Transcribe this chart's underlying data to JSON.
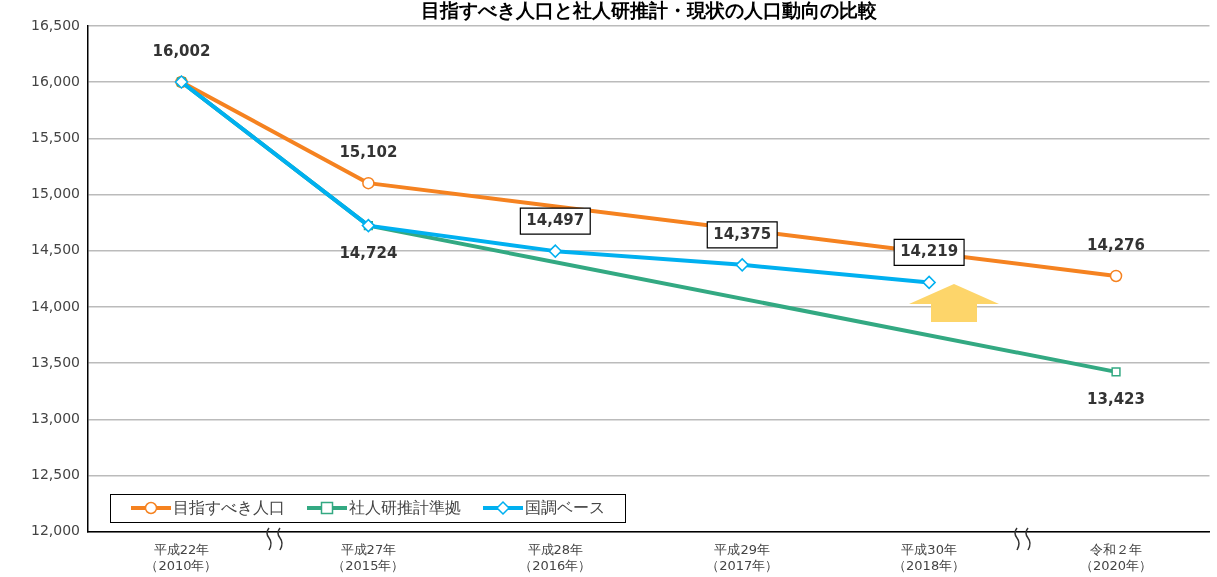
{
  "chart_data": {
    "type": "line",
    "title": "目指すべき人口と社人研推計・現状の人口動向の比較",
    "categories": [
      "平成22年（2010年）",
      "平成27年（2015年）",
      "平成28年（2016年）",
      "平成29年（2017年）",
      "平成30年（2018年）",
      "令和２年（2020年）"
    ],
    "series": [
      {
        "name": "目指すべき人口",
        "color": "#f58220",
        "marker": "circle",
        "values": [
          16002,
          15102,
          null,
          null,
          null,
          14276
        ],
        "value_labels": [
          "16,002",
          "15,102",
          null,
          null,
          null,
          "14,276"
        ]
      },
      {
        "name": "社人研推計準拠",
        "color": "#33a982",
        "marker": "square",
        "values": [
          16002,
          14724,
          null,
          null,
          null,
          13423
        ],
        "value_labels": [
          null,
          "14,724",
          null,
          null,
          null,
          "13,423"
        ]
      },
      {
        "name": "国調ベース",
        "color": "#00b0f0",
        "marker": "diamond",
        "values": [
          16002,
          14724,
          14497,
          14375,
          14219,
          null
        ],
        "value_labels": [
          null,
          null,
          "14,497",
          "14,375",
          "14,219",
          null
        ]
      }
    ],
    "ylim": [
      12000,
      16500
    ],
    "yticks": [
      {
        "value": 12000,
        "label": "12,000"
      },
      {
        "value": 12500,
        "label": "12,500"
      },
      {
        "value": 13000,
        "label": "13,000"
      },
      {
        "value": 13500,
        "label": "13,500"
      },
      {
        "value": 14000,
        "label": "14,000"
      },
      {
        "value": 14500,
        "label": "14,500"
      },
      {
        "value": 15000,
        "label": "15,000"
      },
      {
        "value": 15500,
        "label": "15,500"
      },
      {
        "value": 16000,
        "label": "16,000"
      },
      {
        "value": 16500,
        "label": "16,500"
      }
    ],
    "grid": "y",
    "legend": "bottom left"
  }
}
